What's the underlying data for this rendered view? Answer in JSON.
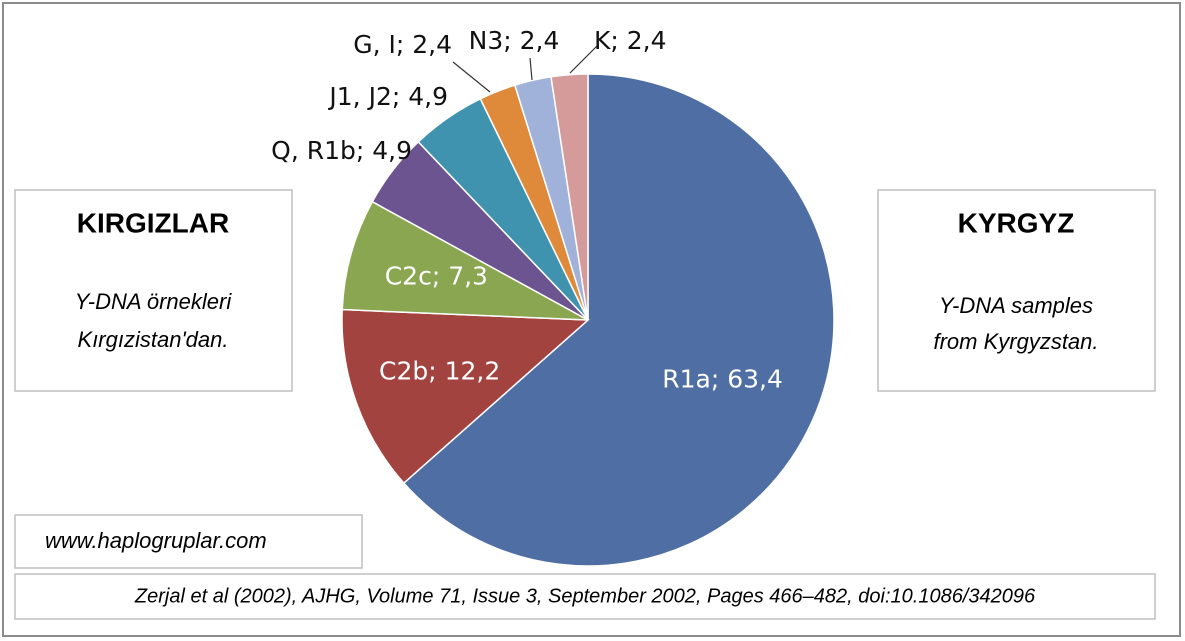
{
  "chart_data": {
    "type": "pie",
    "values": [
      63.4,
      12.2,
      7.3,
      4.9,
      4.9,
      2.4,
      2.4,
      2.4
    ],
    "value_labels": [
      "R1a; 63,4",
      "C2b; 12,2",
      "C2c; 7,3",
      "Q, R1b; 4,9",
      "J1, J2; 4,9",
      "G, I; 2,4",
      "N3; 2,4",
      "K; 2,4"
    ],
    "colors": [
      "#4f6fa4",
      "#a2433f",
      "#8aa650",
      "#6b5490",
      "#3f93ae",
      "#df8a3b",
      "#a0b2da",
      "#d59a9a"
    ],
    "annotations": {
      "boxes": [
        {
          "title": "KIRGIZLAR",
          "text": [
            "Y-DNA örnekleri",
            "Kırgızistan'dan."
          ]
        },
        {
          "title": "KYRGYZ",
          "text": [
            "Y-DNA samples",
            "from Kyrgyzstan."
          ]
        }
      ],
      "website": "www.haplogruplar.com",
      "citation": "Zerjal et al (2002), AJHG, Volume 71, Issue 3, September 2002, Pages 466–482, doi:10.1086/342096"
    }
  }
}
